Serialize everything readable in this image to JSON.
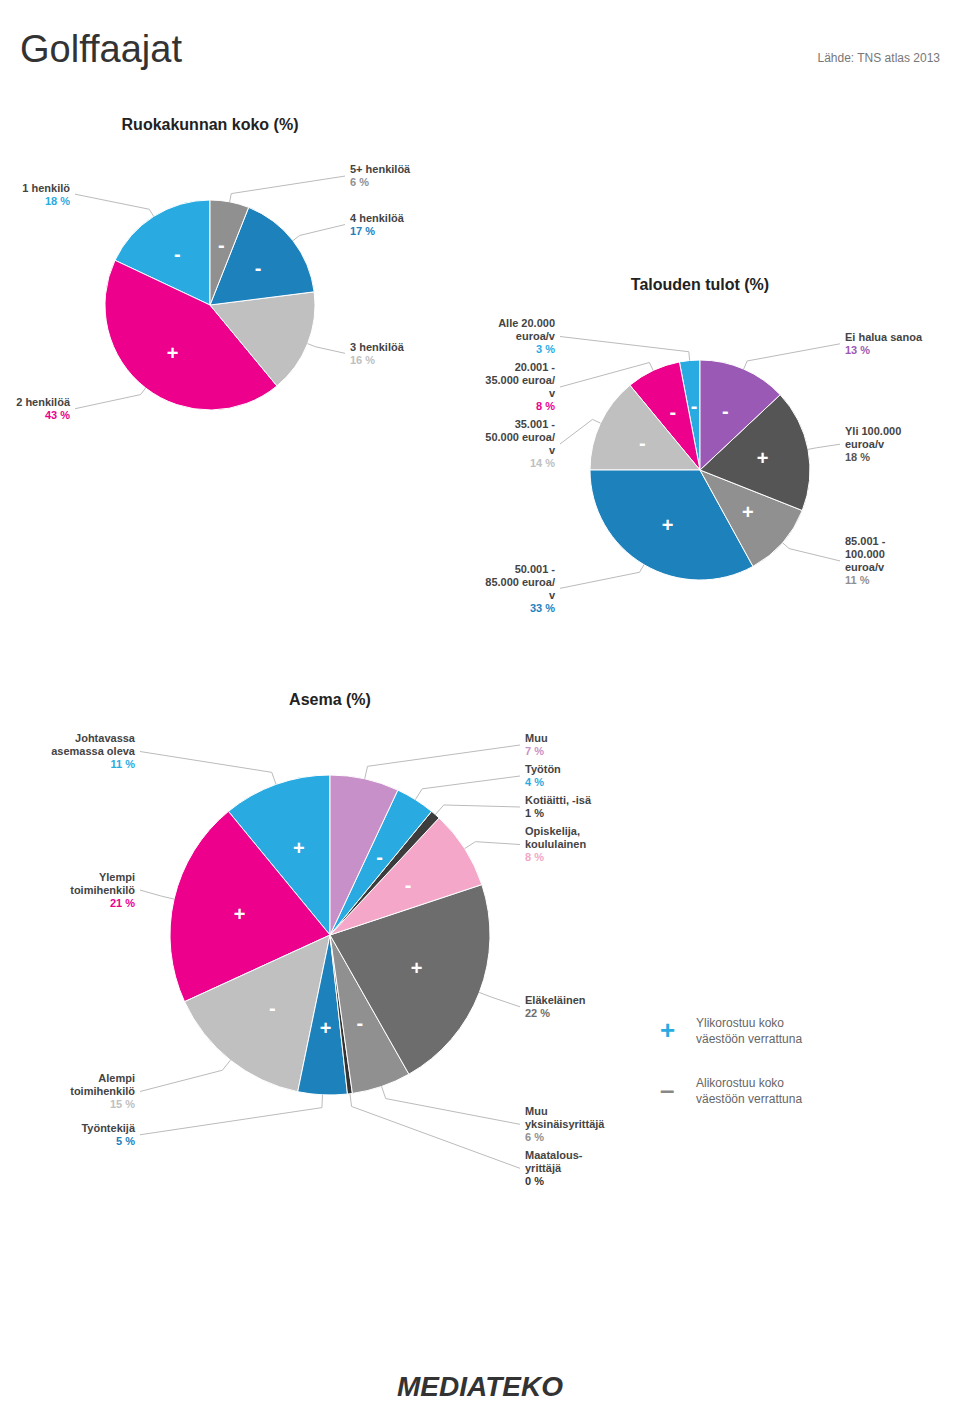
{
  "title": "Golffaajat",
  "annotations": [
    {
      "text": "Lähde: TNS atlas 2013"
    },
    {
      "text": "+",
      "color": "#29ABE2"
    },
    {
      "text": "Ylikorostuu koko\nväestöön verrattuna"
    },
    {
      "text": "–",
      "color": "#888888"
    },
    {
      "text": "Alikorostuu koko\nväestöön verrattuna"
    },
    {
      "text": "MEDIATEKO",
      "color": "#333333"
    }
  ],
  "chart_data": [
    {
      "type": "pie",
      "title": "Ruokakunnan koko (%)",
      "categories": [
        "1 henkilö",
        "2 henkilöä",
        "3 henkilöä",
        "4 henkilöä",
        "5+ henkilöä"
      ],
      "values": [
        18,
        43,
        16,
        17,
        6
      ],
      "value_labels": [
        "18 %",
        "43 %",
        "16 %",
        "17 %",
        "6 %"
      ],
      "colors": [
        "#29ABE2",
        "#EC008C",
        "#C0C0C0",
        "#1D81BC",
        "#909090"
      ],
      "signs": [
        "-",
        "+",
        "",
        "-",
        "-"
      ],
      "data_labels": true
    },
    {
      "type": "pie",
      "title": "Talouden tulot (%)",
      "categories": [
        "Alle 20.000\neuroa/v",
        "20.001 -\n35.000 euroa/\nv",
        "35.001 -\n50.000 euroa/\nv",
        "50.001 -\n85.000 euroa/\nv",
        "85.001 -\n100.000\neuroa/v",
        "Yli 100.000\neuroa/v",
        "Ei halua sanoa"
      ],
      "values": [
        3,
        8,
        14,
        33,
        11,
        18,
        13
      ],
      "value_labels": [
        "3 %",
        "8 %",
        "14 %",
        "33 %",
        "11 %",
        "18 %",
        "13 %"
      ],
      "colors": [
        "#29ABE2",
        "#EC008C",
        "#C0C0C0",
        "#1D81BC",
        "#909090",
        "#555555",
        "#9B59B6"
      ],
      "signs": [
        "-",
        "-",
        "-",
        "+",
        "+",
        "+",
        "-"
      ],
      "data_labels": true
    },
    {
      "type": "pie",
      "title": "Asema (%)",
      "categories": [
        "Johtavassa\nasemassa oleva",
        "Ylempi\ntoimihenkilö",
        "Alempi\ntoimihenkilö",
        "Työntekijä",
        "Maatalous-\nyrittäjä",
        "Muu\nyksinäisyrittäjä",
        "Eläkeläinen",
        "Opiskelija,\nkoululainen",
        "Kotiäitti, -isä",
        "Työtön",
        "Muu"
      ],
      "values": [
        11,
        21,
        15,
        5,
        0.5,
        6,
        22,
        8,
        1,
        4,
        7
      ],
      "value_labels": [
        "11 %",
        "21 %",
        "15 %",
        "5 %",
        "0 %",
        "6 %",
        "22 %",
        "8 %",
        "1 %",
        "4 %",
        "7 %"
      ],
      "colors": [
        "#29ABE2",
        "#EC008C",
        "#C0C0C0",
        "#1D81BC",
        "#333333",
        "#909090",
        "#6D6D6D",
        "#F4A7C8",
        "#3D3D3D",
        "#29ABE2",
        "#C890C8"
      ],
      "signs": [
        "+",
        "+",
        "-",
        "+",
        "",
        "-",
        "+",
        "-",
        "",
        "-",
        ""
      ],
      "data_labels": true
    }
  ]
}
